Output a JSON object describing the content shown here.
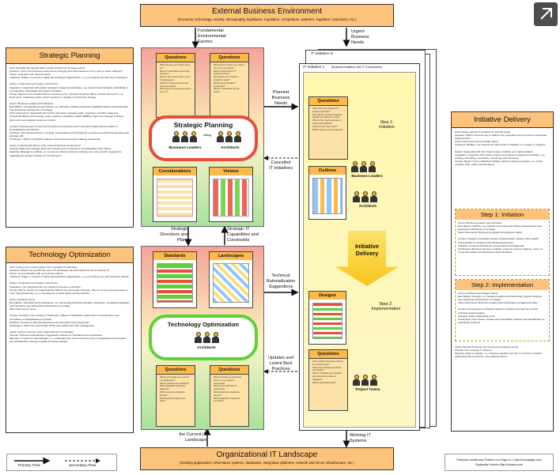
{
  "external": {
    "title": "External Business Environment",
    "subtitle": "(Economy, technology, society, demography, legislation, regulation, competitors, partners, suppliers, customers, etc.)"
  },
  "landscape": {
    "title": "Organizational IT Landscape",
    "subtitle": "(Existing applications, information systems, databases, integration platforms, network and server infrastructure, etc.)"
  },
  "labels": {
    "fundamental_factors": "Fundamental\nEnvironmental\nFactors",
    "urgent_needs": "Urgent\nBusiness\nNeeds",
    "planned_needs": "Planned\nBusiness\nNeeds",
    "cancelled": "Cancelled\nIT Initiatives",
    "strategic_directions": "Strategic\nDirections and\nPlans",
    "strategic_capabilities": "Strategic IT\nCapabilities and\nConstraints",
    "technical_suggestions": "Technical\nRationalization\nSuggestions",
    "updates_practices": "Updates and\nLearnt Best\nPractices",
    "structure_landscape": "Structure of\nthe Current IT\nLandscape",
    "new_systems": "New\nWorking IT\nSystems"
  },
  "strategic_planning": {
    "title": "Strategic Planning",
    "text": "Goal: Articulate the desired future course of action for business and IT\nQuestion: How is the business environment changing and what should we do to react to these changes?\nFocus: Long-term and mid-term future\nInstances: Single, or several in highly decentralized organizations, e.g. one instance for each line of business\n\nNature: Continuous and largely unstructured\nIntegration: Integrated with regular strategic management activities, e.g. environmental analysis, identification of competitive advantages and goals formulation\nTiming: Aligned to the annual business planning cycle, important business dates, periods and events, e.g. fiscal years, budgeting cycles, board meetings or updates of a business strategy\n\nActors: Business Leaders and Architects\nEA Artifacts: Considerations and Visions, e.g. Principles, Policies, Business Capability Models and Roadmaps (see Enterprise Architecture on a Page)\nOther Documents: Organizational mission and vision, strategic goals, objectives and KPIs, balanced scorecards (BSCs) and strategy maps, business motivation models (BMMs), high-level strategic business plans and more detailed programs of work\n\nContent: Development of rules and directions for business and IT and their explicit documentation in Considerations and Visions\nActivities: Informal discussions, meetings, presentations and workshops, as well as periodical formal approvals and sign-offs\nTechniques: SWOT and PEST analyses, Five Forces and other strategy frameworks\n\nInputs: Fundamental factors of the external business environment\nOutputs: High-level strategic plans for business and IT reflected in Considerations and Visions\nMeaning: Strategic to portfolio, i.e. convert an abstract business strategy into more specific suggestions regarding the desired portfolio of IT investments"
  },
  "technology_optimization": {
    "title": "Technology Optimization",
    "text": "Goal: Improve the overall quality of the corporate IT landscape\nQuestion: What is wrong with the current IT landscape and what should we do to improve it?\nFocus: Current situation with some future outlook\nInstances: Single, or several in highly decentralized organizations, e.g. one instance for each business division\n\nNature: Continuous and largely unstructured\nIntegration: Not integrated with any regular processes or activities\nTiming: May be carried out independently without any systematic schedule, often on an as-necessary basis or more opportunistically, e.g. in the absence of other higher-priority activities\n\nActors: Architects alone\nEA Artifacts: Standards and Landscapes, e.g. Technology Reference Models, Guidelines, Landscape Diagrams and Inventories (see Enterprise Architecture on a Page)\nOther Documents: None\n\nContent: Analysis of the existing IT landscape, update of Standards, maintenance of Landscapes and formulation of rationalization proposals\nActivities: Numerous informal discussions and periodical formal approvals\nTechniques: Total cost of ownership (TCO) and architecture debt management\n\nInputs: Current structure of the organizational IT landscape\nOutputs: Technical rationalization suggestions reflected in Standards and Landscapes\nMeaning: IT-centric to rationalization, i.e. understand the current structure of the IT landscape and formulate the rationalization strategy to guide its future evolution"
  },
  "initiative_delivery": {
    "title": "Initiative Delivery",
    "text": "Goal: Deliver optimal IT solutions for specific needs\nQuestion: What is the best way to address the requested need and all the associated requirements?\nFocus: Short-term and immediate future\nInstances: Multiple, one instance for each active IT initiative, e.g. project or program\n\nNature: Sequential with two inherent steps: Initiation and Implementation\nIntegration: Integrated with regular project and program management activities, e.g. scoping, estimating, scheduling, resourcing and monitoring\nTiming: Aligned to the established initiative delivery phases and gates, e.g. scope, evaluate, plan, build, test and deploy",
    "step1_title": "Step 1: Initiation",
    "step1_text": "Actors: Business Leaders and Architects\nEA Artifacts: Outlines, e.g. Solution Overviews and Options Assessments (see Enterprise Architecture on a Page)\nOther Documents: Business proposals and business cases\n\nContent: Analysis of possible solution implementation options, their explicit representation in Outlines and official endorsement\nActivities: Frequent discussions, presentations and approvals\nTechniques: Business process modeling, customer journey mapping, return on investment (ROI) and architecture debt estimation",
    "step2_title": "Step 2: Implementation",
    "step2_text": "Actors: Architects and Project Teams\nEA Artifacts: Designs, e.g. Solution Designs and Preliminary Solution Designs (see Enterprise Architecture on a Page)\nOther Documents: Business requirements and project management plans\n\nContent: Development of Designs based on Outlines and their then actual technical implementation\nActivities: Daily collaborative work\nTechniques: User stories, requirements traceability matrices and identification of preliminary solutions",
    "footer_text": "Inputs: Specific business, and sometimes technical, needs\nOutputs: New working IT solutions\nMeaning: Need to solution, i.e. convert a specific need into a concrete IT solution addressing this need in the most optimal manner"
  },
  "center_top": {
    "questions_left": "Questions",
    "questions_right": "Questions",
    "q_left_lines": "What should our IT plans focus on?\nWhat IT capabilities should we develop?\nWhat is the current state of our IT landscape?\nWhich IT investments are the most important?\nWhat does our business expect from IT?",
    "q_right_lines": "What does IT have to be able to do in the next years?\nWhere should future IT investments go?\nWhat types of IT systems should be used?\nWhich areas should IT modernize?\nWhat IT capabilities do we need?",
    "ring_title": "Strategic Planning",
    "actor_left": "Business Leaders",
    "actor_right": "Architects",
    "dialog": "dialog",
    "considerations": "Considerations",
    "visions": "Visions"
  },
  "center_bottom": {
    "standards": "Standards",
    "landscapes": "Landscapes",
    "ring_title": "Technology Optimization",
    "actor": "Architects",
    "questions_left": "Questions",
    "questions_right": "Questions",
    "q_left_lines": "What technologies are used in our landscape?\nWhich systems are outdated?\nWhat standards should be followed?\nWhich systems should be retired?\nWhat technical debt do we have?",
    "q_right_lines": "What IT assets do we have?\nHow are our systems connected?\nWhat is the total cost of ownership?\nWhich platforms should be reused?\nWhat duplication should be removed?"
  },
  "initiatives": {
    "tab_n": "IT Initiative N",
    "tab_1": "IT Initiative 1",
    "tab_1_sub": "(Business initiatives with IT Components)",
    "questions": "Questions",
    "q_lines": "What does the proposed IT solution look like?\nHow will the proposed solution satisfy our business needs?\nWhat is the rough estimate of costs and timelines?\nWhat are the main risks?\nWhich options are considered?",
    "step1": "Step 1:\nInitiation",
    "business_leaders": "Business Leaders",
    "architects": "Architects",
    "outlines": "Outlines",
    "center_label": "Initiative\nDelivery",
    "designs": "Designs",
    "step2": "Step 2:\nImplementation",
    "questions2": "Questions",
    "q2_lines": "How exactly should the solution be implemented?\nWhat new software should be purchased?\nWhich interfaces are needed?\nHow should the data be migrated?\nWhich standards apply?",
    "project_teams": "Project Teams"
  },
  "legend": {
    "primary": "Primary Flow",
    "secondary": "Secondary Flow",
    "credit_1": "Enterprise Architecture Practice on a Page v1.1 (http://eaonapage.com)",
    "credit_2": "Svyatoslav Kotusev (http://kotusev.com)"
  },
  "colors": {
    "orange_header": "#fdc37a",
    "red_ring": "#e74c3c",
    "green_ring": "#5bd235",
    "yellow_box": "#fff7a0"
  }
}
